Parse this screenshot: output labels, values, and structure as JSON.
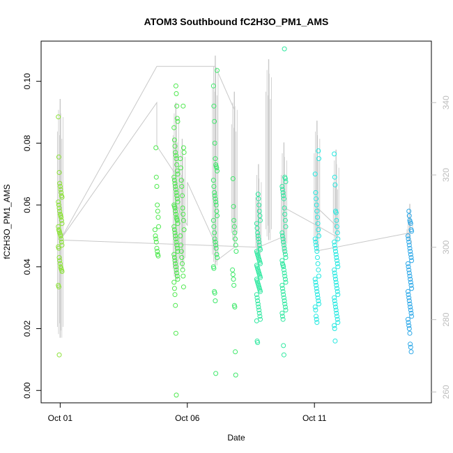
{
  "chart_data": {
    "type": "scatter",
    "title": "ATOM3 Southbound fC2H3O_PM1_AMS",
    "xlabel": "Date",
    "ylabel": "fC2H3O_PM1_AMS",
    "x_ticks": [
      "Oct 01",
      "Oct 06",
      "Oct 11"
    ],
    "x_tick_values": [
      0,
      5,
      10
    ],
    "xlim": [
      -0.75,
      14.6
    ],
    "ylim": [
      -0.004,
      0.113
    ],
    "y_ticks": [
      "0.00",
      "0.02",
      "0.04",
      "0.06",
      "0.08",
      "0.10"
    ],
    "y_tick_values": [
      0.0,
      0.02,
      0.04,
      0.06,
      0.08,
      0.1
    ],
    "y2_ticks": [
      "260",
      "280",
      "300",
      "320",
      "340"
    ],
    "y2_tick_values": [
      260,
      280,
      300,
      320,
      340
    ],
    "y2lim": [
      257,
      357
    ],
    "grid": false,
    "colors": {
      "Oct 01": "#8ae234",
      "Oct 04-05": "#4de84d",
      "Oct 06-07": "#3ee86a",
      "Oct 08-09": "#2fe8a0",
      "Oct 11-12": "#22e8e0",
      "Oct 15": "#2aa7e8",
      "secondary_line": "#c8c8c8"
    },
    "clusters": [
      {
        "day": 0.0,
        "color": "#8ae234",
        "values": [
          0.0885,
          0.0755,
          0.0705,
          0.067,
          0.066,
          0.065,
          0.064,
          0.063,
          0.0625,
          0.061,
          0.06,
          0.059,
          0.058,
          0.057,
          0.0565,
          0.056,
          0.055,
          0.054,
          0.053,
          0.052,
          0.0515,
          0.051,
          0.0505,
          0.05,
          0.049,
          0.048,
          0.047,
          0.0465,
          0.046,
          0.043,
          0.042,
          0.041,
          0.04,
          0.0395,
          0.039,
          0.0385,
          0.034,
          0.0335,
          0.0115
        ]
      },
      {
        "day": 3.8,
        "color": "#4de84d",
        "values": [
          0.0785,
          0.069,
          0.066,
          0.06,
          0.058,
          0.056,
          0.053,
          0.052,
          0.05,
          0.049,
          0.048,
          0.046,
          0.045,
          0.044,
          0.0435
        ]
      },
      {
        "day": 4.55,
        "color": "#4de84d",
        "values": [
          0.0985,
          0.096,
          0.092,
          0.088,
          0.087,
          0.085,
          0.081,
          0.079,
          0.077,
          0.076,
          0.075,
          0.073,
          0.071,
          0.07,
          0.069,
          0.068,
          0.067,
          0.066,
          0.065,
          0.064,
          0.063,
          0.062,
          0.061,
          0.06,
          0.0595,
          0.059,
          0.058,
          0.057,
          0.056,
          0.0555,
          0.055,
          0.054,
          0.053,
          0.052,
          0.051,
          0.05,
          0.049,
          0.048,
          0.047,
          0.046,
          0.045,
          0.044,
          0.043,
          0.042,
          0.041,
          0.04,
          0.039,
          0.038,
          0.037,
          0.036,
          0.035,
          0.033,
          0.031,
          0.0275,
          0.0185,
          -0.0015
        ]
      },
      {
        "day": 4.8,
        "color": "#4de84d",
        "values": [
          0.092,
          0.0785,
          0.077,
          0.075,
          0.072,
          0.068,
          0.066,
          0.063,
          0.059,
          0.057,
          0.055,
          0.052,
          0.05,
          0.047,
          0.045,
          0.043,
          0.041,
          0.039,
          0.037,
          0.0335
        ]
      },
      {
        "day": 6.1,
        "color": "#3ee86a",
        "values": [
          0.1035,
          0.0985,
          0.092,
          0.087,
          0.08,
          0.075,
          0.073,
          0.0725,
          0.072,
          0.071,
          0.068,
          0.066,
          0.064,
          0.063,
          0.062,
          0.061,
          0.06,
          0.058,
          0.0565,
          0.055,
          0.053,
          0.051,
          0.049,
          0.048,
          0.047,
          0.046,
          0.044,
          0.043,
          0.04,
          0.0395,
          0.032,
          0.0315,
          0.029,
          0.0055
        ]
      },
      {
        "day": 6.85,
        "color": "#3ee86a",
        "values": [
          0.0685,
          0.0595,
          0.055,
          0.053,
          0.051,
          0.049,
          0.047,
          0.045,
          0.039,
          0.0375,
          0.036,
          0.034,
          0.0275,
          0.027,
          0.0125,
          0.005
        ]
      },
      {
        "day": 7.8,
        "color": "#2fe8a0",
        "values": [
          0.0635,
          0.062,
          0.06,
          0.058,
          0.0565,
          0.055,
          0.054,
          0.0525,
          0.051,
          0.05,
          0.049,
          0.048,
          0.047,
          0.046,
          0.0455,
          0.045,
          0.0445,
          0.044,
          0.0435,
          0.043,
          0.0425,
          0.042,
          0.0415,
          0.041,
          0.0405,
          0.04,
          0.0395,
          0.039,
          0.0385,
          0.038,
          0.0375,
          0.037,
          0.0365,
          0.036,
          0.0355,
          0.035,
          0.0345,
          0.034,
          0.0335,
          0.033,
          0.0325,
          0.032,
          0.031,
          0.03,
          0.029,
          0.028,
          0.027,
          0.026,
          0.025,
          0.024,
          0.023,
          0.0225,
          0.016,
          0.0155
        ]
      },
      {
        "day": 8.8,
        "color": "#2fe8a0",
        "values": [
          0.1105,
          0.069,
          0.0685,
          0.0675,
          0.066,
          0.065,
          0.064,
          0.063,
          0.062,
          0.059,
          0.057,
          0.055,
          0.053,
          0.051,
          0.05,
          0.049,
          0.048,
          0.047,
          0.046,
          0.045,
          0.044,
          0.043,
          0.042,
          0.041,
          0.0405,
          0.04,
          0.039,
          0.038,
          0.037,
          0.036,
          0.035,
          0.034,
          0.033,
          0.032,
          0.031,
          0.03,
          0.029,
          0.028,
          0.027,
          0.026,
          0.025,
          0.024,
          0.023,
          0.0145,
          0.0115
        ]
      },
      {
        "day": 10.1,
        "color": "#22e8e0",
        "values": [
          0.0775,
          0.075,
          0.07,
          0.064,
          0.062,
          0.06,
          0.058,
          0.056,
          0.054,
          0.052,
          0.05,
          0.049,
          0.048,
          0.047,
          0.046,
          0.045,
          0.043,
          0.041,
          0.039,
          0.037,
          0.036,
          0.035,
          0.034,
          0.033,
          0.032,
          0.031,
          0.03,
          0.029,
          0.028,
          0.027,
          0.026,
          0.024,
          0.023,
          0.022
        ]
      },
      {
        "day": 10.85,
        "color": "#22e8e0",
        "values": [
          0.0765,
          0.069,
          0.0665,
          0.058,
          0.0575,
          0.055,
          0.053,
          0.051,
          0.049,
          0.048,
          0.047,
          0.046,
          0.045,
          0.044,
          0.043,
          0.042,
          0.041,
          0.04,
          0.039,
          0.038,
          0.037,
          0.036,
          0.035,
          0.034,
          0.033,
          0.032,
          0.031,
          0.03,
          0.029,
          0.028,
          0.027,
          0.026,
          0.025,
          0.024,
          0.023,
          0.022,
          0.021,
          0.02,
          0.016
        ]
      },
      {
        "day": 13.75,
        "color": "#2aa7e8",
        "values": [
          0.058,
          0.0565,
          0.055,
          0.0545,
          0.054,
          0.052,
          0.0515,
          0.05,
          0.049,
          0.048,
          0.047,
          0.046,
          0.045,
          0.044,
          0.043,
          0.042,
          0.041,
          0.04,
          0.039,
          0.038,
          0.037,
          0.036,
          0.035,
          0.034,
          0.033,
          0.032,
          0.031,
          0.03,
          0.029,
          0.028,
          0.027,
          0.026,
          0.025,
          0.024,
          0.023,
          0.022,
          0.021,
          0.02,
          0.0185,
          0.015,
          0.014,
          0.0125
        ]
      }
    ],
    "secondary_series": {
      "axis": "right",
      "color": "#c8c8c8",
      "points": [
        [
          0.0,
          302
        ],
        [
          3.8,
          340
        ],
        [
          3.8,
          328
        ],
        [
          4.55,
          320
        ],
        [
          4.55,
          312
        ],
        [
          5.0,
          306
        ],
        [
          5.0,
          318
        ],
        [
          6.1,
          301
        ],
        [
          6.1,
          296
        ],
        [
          6.85,
          300
        ],
        [
          6.85,
          338
        ],
        [
          6.1,
          350
        ],
        [
          3.8,
          350
        ],
        [
          0.0,
          302
        ],
        [
          7.8,
          300
        ],
        [
          8.8,
          303
        ],
        [
          8.8,
          311
        ],
        [
          10.1,
          306
        ],
        [
          10.85,
          303
        ],
        [
          10.85,
          306
        ],
        [
          10.1,
          311
        ],
        [
          10.1,
          299
        ],
        [
          13.75,
          304
        ]
      ]
    },
    "spikes": [
      {
        "day": 0.0,
        "top": 341,
        "bottom": 275
      },
      {
        "day": 4.55,
        "top": 340,
        "bottom": 291
      },
      {
        "day": 4.8,
        "top": 330,
        "bottom": 294
      },
      {
        "day": 6.1,
        "top": 353,
        "bottom": 295
      },
      {
        "day": 6.85,
        "top": 343,
        "bottom": 301
      },
      {
        "day": 7.8,
        "top": 323,
        "bottom": 297
      },
      {
        "day": 8.2,
        "top": 352,
        "bottom": 302
      },
      {
        "day": 8.8,
        "top": 329,
        "bottom": 298
      },
      {
        "day": 10.1,
        "top": 335,
        "bottom": 300
      },
      {
        "day": 10.85,
        "top": 327,
        "bottom": 301
      },
      {
        "day": 13.75,
        "top": 312,
        "bottom": 302
      }
    ]
  }
}
